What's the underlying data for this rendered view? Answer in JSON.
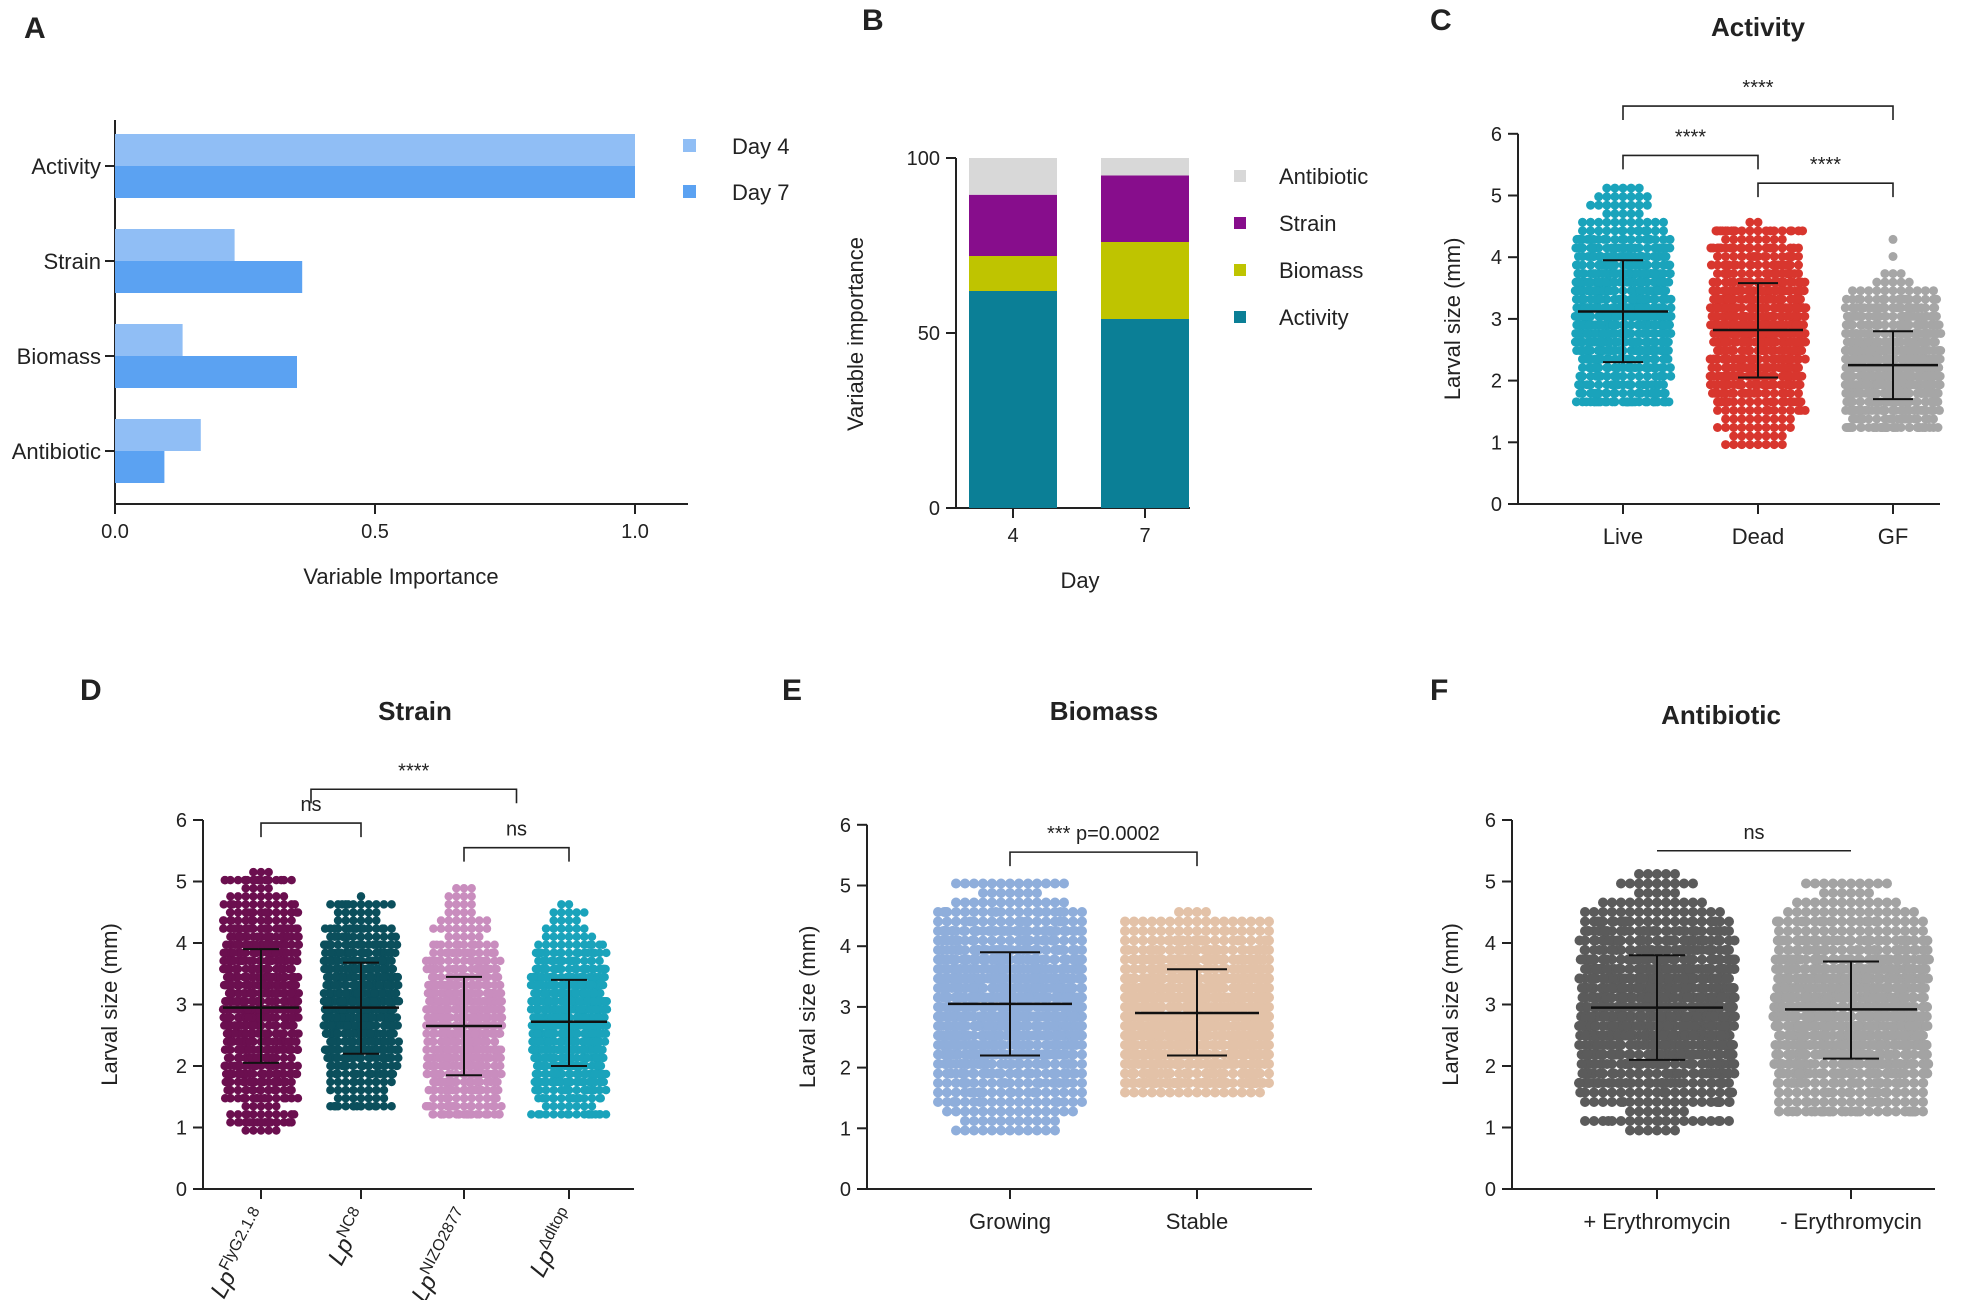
{
  "panels": {
    "A": "A",
    "B": "B",
    "C": "C",
    "D": "D",
    "E": "E",
    "F": "F"
  },
  "chart_data": [
    {
      "id": "A",
      "type": "bar",
      "orientation": "horizontal",
      "title": "",
      "xlabel": "Variable Importance",
      "ylabel": "",
      "categories": [
        "Activity",
        "Strain",
        "Biomass",
        "Antibiotic"
      ],
      "series": [
        {
          "name": "Day 4",
          "color": "#90BEF5",
          "values": [
            1.0,
            0.23,
            0.13,
            0.165
          ]
        },
        {
          "name": "Day 7",
          "color": "#5BA2F2",
          "values": [
            1.0,
            0.36,
            0.35,
            0.095
          ]
        }
      ],
      "xlim": [
        0,
        1.1
      ],
      "xticks": [
        "0.0",
        "0.5",
        "1.0"
      ],
      "legend": "top-right"
    },
    {
      "id": "B",
      "type": "bar",
      "stacked": true,
      "title": "",
      "xlabel": "Day",
      "ylabel": "Variable importance",
      "categories": [
        "4",
        "7"
      ],
      "series": [
        {
          "name": "Activity",
          "color": "#0B7F96",
          "values": [
            62,
            54
          ]
        },
        {
          "name": "Biomass",
          "color": "#BFC400",
          "values": [
            10,
            22
          ]
        },
        {
          "name": "Strain",
          "color": "#870D8C",
          "values": [
            17.5,
            19
          ]
        },
        {
          "name": "Antibiotic",
          "color": "#D8D8D8",
          "values": [
            10.5,
            5
          ]
        }
      ],
      "legend_order": [
        "Antibiotic",
        "Strain",
        "Biomass",
        "Activity"
      ],
      "ylim": [
        0,
        100
      ],
      "yticks": [
        "0",
        "50",
        "100"
      ],
      "legend": "right"
    },
    {
      "id": "C",
      "type": "scatter",
      "title": "Activity",
      "ylabel": "Larval size (mm)",
      "xlabel": "",
      "ylim": [
        0,
        6
      ],
      "yticks": [
        "0",
        "1",
        "2",
        "3",
        "4",
        "5",
        "6"
      ],
      "groups": [
        {
          "name": "Live",
          "color": "#1AA3BB",
          "mean": 3.12,
          "lower": 2.3,
          "upper": 3.95,
          "min": 1.65,
          "max": 5.1
        },
        {
          "name": "Dead",
          "color": "#D8362E",
          "mean": 2.82,
          "lower": 2.05,
          "upper": 3.58,
          "min": 0.95,
          "max": 4.5
        },
        {
          "name": "GF",
          "color": "#A6A6A6",
          "mean": 2.25,
          "lower": 1.7,
          "upper": 2.8,
          "min": 1.2,
          "max": 4.35
        }
      ],
      "comparisons": [
        {
          "a": 0,
          "b": 1,
          "label": "****",
          "y": 5.65
        },
        {
          "a": 1,
          "b": 2,
          "label": "****",
          "y": 5.2
        },
        {
          "a": 0,
          "b": 2,
          "label": "****",
          "y": 6.45
        }
      ]
    },
    {
      "id": "D",
      "type": "scatter",
      "title": "Strain",
      "ylabel": "Larval size (mm)",
      "xlabel": "",
      "ylim": [
        0,
        6
      ],
      "yticks": [
        "0",
        "1",
        "2",
        "3",
        "4",
        "5",
        "6"
      ],
      "groups": [
        {
          "name": "Lp",
          "sup": "FlyG2.1.8",
          "color": "#6B0F4F",
          "mean": 2.95,
          "lower": 2.05,
          "upper": 3.9,
          "min": 1.0,
          "max": 5.1
        },
        {
          "name": "Lp",
          "sup": "NC8",
          "color": "#0B4F5C",
          "mean": 2.95,
          "lower": 2.2,
          "upper": 3.68,
          "min": 1.3,
          "max": 4.7
        },
        {
          "name": "Lp",
          "sup": "NIZO2877",
          "color": "#C98DBE",
          "mean": 2.65,
          "lower": 1.85,
          "upper": 3.45,
          "min": 1.2,
          "max": 4.85
        },
        {
          "name": "Lp",
          "sup": "Δdltop",
          "color": "#1AA3BB",
          "mean": 2.72,
          "lower": 2.0,
          "upper": 3.4,
          "min": 1.15,
          "max": 4.6
        }
      ],
      "comparisons": [
        {
          "a": 0,
          "b": 1,
          "label": "ns",
          "y": 5.95
        },
        {
          "a": 2,
          "b": 3,
          "label": "ns",
          "y": 5.55
        },
        {
          "a": 0.5,
          "b": 2.5,
          "label": "****",
          "y": 6.5
        }
      ]
    },
    {
      "id": "E",
      "type": "scatter",
      "title": "Biomass",
      "ylabel": "Larval size (mm)",
      "xlabel": "",
      "ylim": [
        0,
        6
      ],
      "yticks": [
        "0",
        "1",
        "2",
        "3",
        "4",
        "5",
        "6"
      ],
      "groups": [
        {
          "name": "Growing",
          "color": "#8FAEDB",
          "mean": 3.05,
          "lower": 2.2,
          "upper": 3.9,
          "min": 0.98,
          "max": 5.1
        },
        {
          "name": "Stable",
          "color": "#E3C2A8",
          "mean": 2.9,
          "lower": 2.2,
          "upper": 3.62,
          "min": 1.65,
          "max": 4.5
        }
      ],
      "comparisons": [
        {
          "a": 0,
          "b": 1,
          "label": "***  p=0.0002",
          "y": 5.55
        }
      ]
    },
    {
      "id": "F",
      "type": "scatter",
      "title": "Antibiotic",
      "ylabel": "Larval size (mm)",
      "xlabel": "",
      "ylim": [
        0,
        6
      ],
      "yticks": [
        "0",
        "1",
        "2",
        "3",
        "4",
        "5",
        "6"
      ],
      "groups": [
        {
          "name": "+ Erythromycin",
          "color": "#5B5B5B",
          "mean": 2.95,
          "lower": 2.1,
          "upper": 3.8,
          "min": 1.0,
          "max": 5.1
        },
        {
          "name": "- Erythromycin",
          "color": "#A3A3A3",
          "mean": 2.92,
          "lower": 2.12,
          "upper": 3.7,
          "min": 1.25,
          "max": 5.02
        }
      ],
      "comparisons": [
        {
          "a": 0,
          "b": 1,
          "label": "ns",
          "y": 5.5,
          "flat": true
        }
      ]
    }
  ]
}
